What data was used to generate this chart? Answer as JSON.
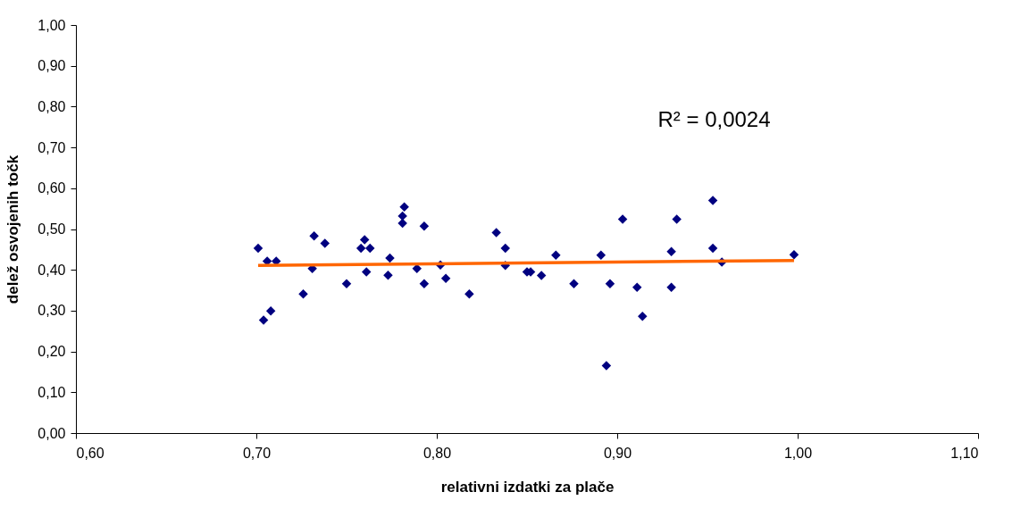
{
  "chart_data": {
    "type": "scatter",
    "xlabel": "relativni izdatki za plače",
    "ylabel": "delež osvojenih točk",
    "annotations": [
      "R² = 0,0024"
    ],
    "xlim": [
      0.6,
      1.1
    ],
    "xticks": [
      {
        "value": 0.6,
        "label": "0,60"
      },
      {
        "value": 0.7,
        "label": "0,70"
      },
      {
        "value": 0.8,
        "label": "0,80"
      },
      {
        "value": 0.9,
        "label": "0,90"
      },
      {
        "value": 1.0,
        "label": "1,00"
      },
      {
        "value": 1.1,
        "label": "1,10"
      }
    ],
    "ylim": [
      0,
      1
    ],
    "yticks": [
      {
        "value": 0,
        "label": "0,00"
      },
      {
        "value": 0.1,
        "label": "0,10"
      },
      {
        "value": 0.2,
        "label": "0,20"
      },
      {
        "value": 0.3,
        "label": "0,30"
      },
      {
        "value": 0.4,
        "label": "0,40"
      },
      {
        "value": 0.5,
        "label": "0,50"
      },
      {
        "value": 0.6,
        "label": "0,60"
      },
      {
        "value": 0.7,
        "label": "0,70"
      },
      {
        "value": 0.8,
        "label": "0,80"
      },
      {
        "value": 0.9,
        "label": "0,90"
      },
      {
        "value": 1.0,
        "label": "1,00"
      }
    ],
    "grid": false,
    "series": [
      {
        "color": "#000080",
        "marker": "diamond",
        "x": [
          0.701,
          0.706,
          0.711,
          0.708,
          0.704,
          0.726,
          0.731,
          0.732,
          0.738,
          0.75,
          0.758,
          0.76,
          0.763,
          0.761,
          0.773,
          0.774,
          0.782,
          0.781,
          0.781,
          0.789,
          0.793,
          0.793,
          0.802,
          0.805,
          0.818,
          0.833,
          0.838,
          0.838,
          0.85,
          0.852,
          0.858,
          0.866,
          0.876,
          0.891,
          0.894,
          0.896,
          0.903,
          0.911,
          0.914,
          0.93,
          0.93,
          0.933,
          0.953,
          0.953,
          0.958,
          0.998
        ],
        "values": [
          0.453,
          0.421,
          0.421,
          0.299,
          0.277,
          0.341,
          0.403,
          0.483,
          0.465,
          0.366,
          0.453,
          0.474,
          0.453,
          0.395,
          0.387,
          0.429,
          0.554,
          0.532,
          0.514,
          0.403,
          0.507,
          0.366,
          0.412,
          0.379,
          0.341,
          0.491,
          0.453,
          0.411,
          0.395,
          0.395,
          0.386,
          0.436,
          0.366,
          0.436,
          0.165,
          0.366,
          0.524,
          0.357,
          0.286,
          0.445,
          0.357,
          0.524,
          0.57,
          0.453,
          0.419,
          0.437
        ]
      },
      {
        "type": "line",
        "color": "#ff6600",
        "marker": "none",
        "line_style": "solid",
        "x": [
          0.701,
          0.998
        ],
        "values": [
          0.411,
          0.423
        ]
      }
    ]
  }
}
